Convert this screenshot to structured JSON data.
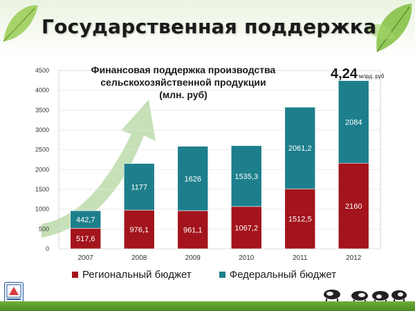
{
  "slide": {
    "title": "Государственная поддержка"
  },
  "chart_data": {
    "type": "bar",
    "stacked": true,
    "title": "Финансовая поддержка производства сельскохозяйственной продукции (млн. руб)",
    "title_lines": [
      "Финансовая поддержка производства",
      "сельскохозяйственной продукции",
      "(млн. руб)"
    ],
    "categories": [
      "2007",
      "2008",
      "2009",
      "2010",
      "2011",
      "2012"
    ],
    "series": [
      {
        "name": "Региональный бюджет",
        "color": "#a3141c",
        "values": [
          517.6,
          976.1,
          961.1,
          1067.2,
          1512.5,
          2160
        ],
        "labels": [
          "517,6",
          "976,1",
          "961,1",
          "1067,2",
          "1512,5",
          "2160"
        ]
      },
      {
        "name": "Федеральный бюджет",
        "color": "#1e7f8c",
        "values": [
          442.7,
          1177,
          1626,
          1535.3,
          2061.2,
          2084
        ],
        "labels": [
          "442,7",
          "1177",
          "1626",
          "1535,3",
          "2061,2",
          "2084"
        ]
      }
    ],
    "y_ticks": [
      "0",
      "500",
      "1000",
      "1500",
      "2000",
      "2500",
      "3000",
      "3500",
      "4000",
      "4500"
    ],
    "ylim": [
      0,
      4500
    ],
    "legend_position": "bottom",
    "annotation": {
      "value": "4,24",
      "unit": "млрд. руб"
    }
  }
}
